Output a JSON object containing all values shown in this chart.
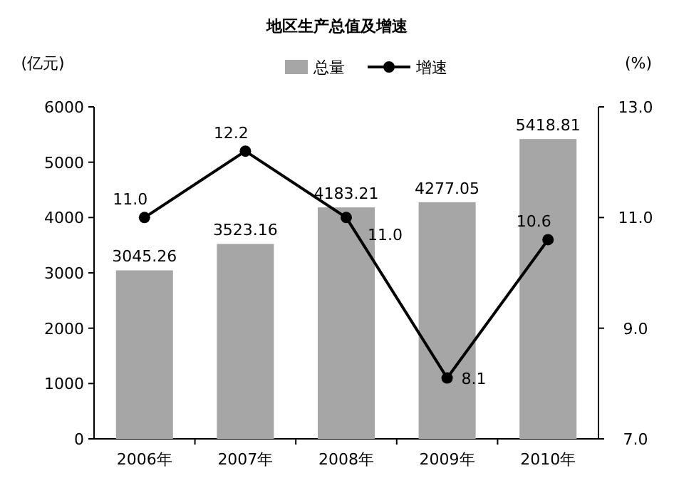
{
  "chart_data": {
    "type": "bar",
    "title": "地区生产总值及增速",
    "ylabel": "(亿元)",
    "y2label": "(%)",
    "categories": [
      "2006年",
      "2007年",
      "2008年",
      "2009年",
      "2010年"
    ],
    "series": [
      {
        "name": "总量",
        "color": "#a6a6a6",
        "values": [
          3045.26,
          3523.16,
          4183.21,
          4277.05,
          5418.81
        ],
        "value_labels": [
          "3045.26",
          "3523.16",
          "4183.21",
          "4277.05",
          "5418.81"
        ]
      },
      {
        "name": "增速",
        "type": "line",
        "axis": "y2",
        "color": "#000000",
        "values": [
          11.0,
          12.2,
          11.0,
          8.1,
          10.6
        ],
        "value_labels": [
          "11.0",
          "12.2",
          "11.0",
          "8.1",
          "10.6"
        ]
      }
    ],
    "marker": "circle",
    "legend": "top",
    "ylim": [
      0,
      6000
    ],
    "yticks": [
      0,
      1000,
      2000,
      3000,
      4000,
      5000,
      6000
    ],
    "y2lim": [
      7,
      13
    ],
    "y2ticks": [
      {
        "value": 7,
        "label": "7.0"
      },
      {
        "value": 9,
        "label": "9.0"
      },
      {
        "value": 11,
        "label": "11.0"
      },
      {
        "value": 13,
        "label": "13.0"
      }
    ]
  }
}
